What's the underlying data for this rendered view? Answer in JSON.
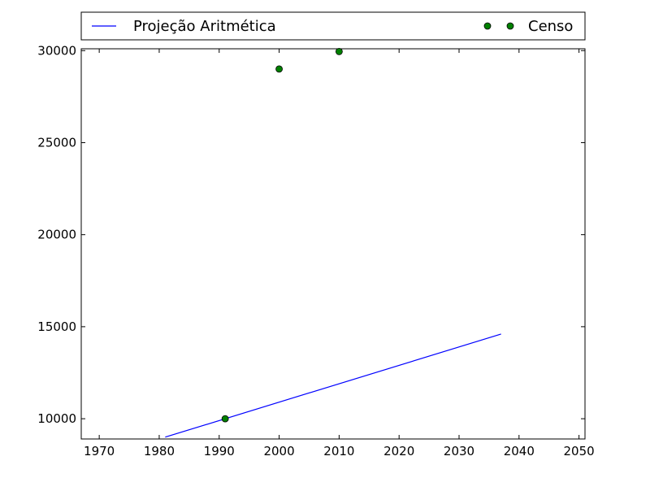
{
  "chart_data": {
    "type": "line",
    "title": "",
    "xlabel": "",
    "ylabel": "",
    "xlim": [
      1967,
      2051
    ],
    "ylim": [
      8900,
      30100
    ],
    "x_ticks": [
      1970,
      1980,
      1990,
      2000,
      2010,
      2020,
      2030,
      2040,
      2050
    ],
    "y_ticks": [
      10000,
      15000,
      20000,
      25000,
      30000
    ],
    "x_tick_labels": [
      "1970",
      "1980",
      "1990",
      "2000",
      "2010",
      "2020",
      "2030",
      "2040",
      "2050"
    ],
    "y_tick_labels": [
      "10000",
      "15000",
      "20000",
      "25000",
      "30000"
    ],
    "grid": false,
    "legend_position": "top, above plot",
    "series": [
      {
        "name": "Projeção Aritmética",
        "kind": "line",
        "color": "#0000ff",
        "x": [
          1981,
          2037
        ],
        "y": [
          9000,
          14600
        ]
      },
      {
        "name": "Censo",
        "kind": "markers",
        "color": "#008000",
        "x": [
          1991,
          2000,
          2010
        ],
        "y": [
          10000,
          29000,
          29950
        ]
      }
    ]
  }
}
